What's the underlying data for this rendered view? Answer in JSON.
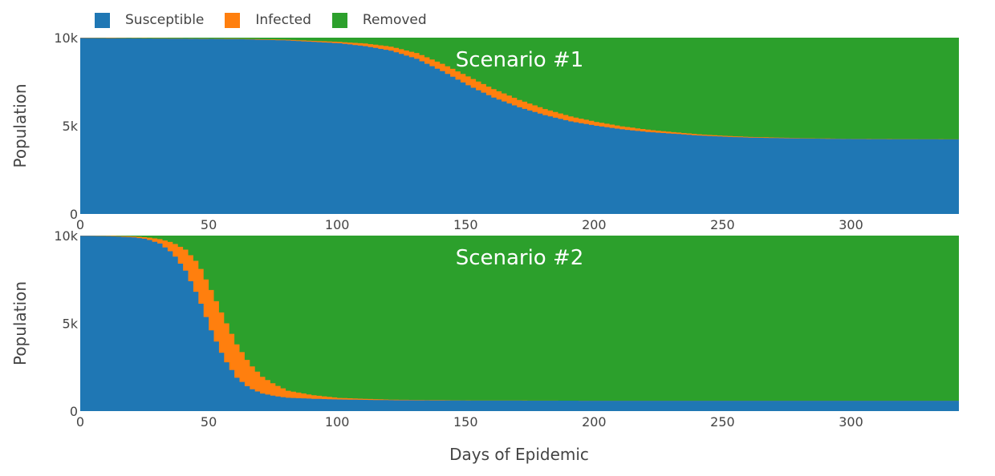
{
  "legend": [
    {
      "name": "Susceptible",
      "color": "#1f77b4"
    },
    {
      "name": "Infected",
      "color": "#ff7f0e"
    },
    {
      "name": "Removed",
      "color": "#2ca02c"
    }
  ],
  "xlabel": "Days of Epidemic",
  "chart_data": [
    {
      "type": "area",
      "title": "Scenario #1",
      "ylabel": "Population",
      "xlim": [
        0,
        342
      ],
      "ylim": [
        0,
        10000
      ],
      "x_ticks": [
        0,
        50,
        100,
        150,
        200,
        250,
        300
      ],
      "y_ticks": [
        0,
        5000,
        10000
      ],
      "y_tick_labels": [
        "0",
        "5k",
        "10k"
      ],
      "stacked": true,
      "total": 10000,
      "series": [
        {
          "name": "Susceptible",
          "color": "#1f77b4",
          "x": [
            0,
            20,
            40,
            60,
            80,
            100,
            110,
            120,
            130,
            140,
            150,
            160,
            170,
            180,
            190,
            200,
            210,
            220,
            230,
            240,
            250,
            260,
            280,
            300,
            320,
            342
          ],
          "values": [
            9980,
            9960,
            9940,
            9920,
            9840,
            9680,
            9520,
            9260,
            8800,
            8100,
            7300,
            6600,
            6050,
            5600,
            5250,
            5000,
            4800,
            4650,
            4550,
            4450,
            4380,
            4330,
            4280,
            4250,
            4240,
            4230
          ]
        },
        {
          "name": "Infected",
          "color": "#ff7f0e",
          "x": [
            0,
            20,
            40,
            60,
            80,
            100,
            110,
            120,
            130,
            140,
            150,
            160,
            170,
            180,
            190,
            200,
            210,
            220,
            230,
            240,
            250,
            260,
            280,
            300,
            320,
            342
          ],
          "values": [
            20,
            15,
            15,
            20,
            40,
            80,
            150,
            230,
            330,
            420,
            500,
            480,
            420,
            350,
            280,
            220,
            170,
            130,
            90,
            70,
            50,
            40,
            20,
            10,
            10,
            10
          ]
        }
      ]
    },
    {
      "type": "area",
      "title": "Scenario #2",
      "ylabel": "Population",
      "xlim": [
        0,
        342
      ],
      "ylim": [
        0,
        10000
      ],
      "x_ticks": [
        0,
        50,
        100,
        150,
        200,
        250,
        300
      ],
      "y_ticks": [
        0,
        5000,
        10000
      ],
      "y_tick_labels": [
        "0",
        "5k",
        "10k"
      ],
      "stacked": true,
      "total": 10000,
      "series": [
        {
          "name": "Susceptible",
          "color": "#1f77b4",
          "x": [
            0,
            10,
            20,
            25,
            30,
            35,
            40,
            45,
            50,
            55,
            60,
            65,
            70,
            75,
            80,
            90,
            100,
            120,
            150,
            200,
            250,
            300,
            342
          ],
          "values": [
            9990,
            9970,
            9900,
            9800,
            9550,
            9000,
            8000,
            6500,
            4600,
            3000,
            1900,
            1300,
            1000,
            850,
            760,
            700,
            660,
            620,
            600,
            590,
            590,
            590,
            590
          ]
        },
        {
          "name": "Infected",
          "color": "#ff7f0e",
          "x": [
            0,
            10,
            20,
            25,
            30,
            35,
            40,
            45,
            50,
            55,
            60,
            65,
            70,
            75,
            80,
            90,
            100,
            120,
            150,
            200,
            250,
            300,
            342
          ],
          "values": [
            10,
            20,
            50,
            100,
            250,
            600,
            1200,
            1900,
            2300,
            2300,
            1900,
            1400,
            950,
            650,
            400,
            200,
            90,
            30,
            10,
            0,
            0,
            0,
            0
          ]
        }
      ]
    }
  ]
}
